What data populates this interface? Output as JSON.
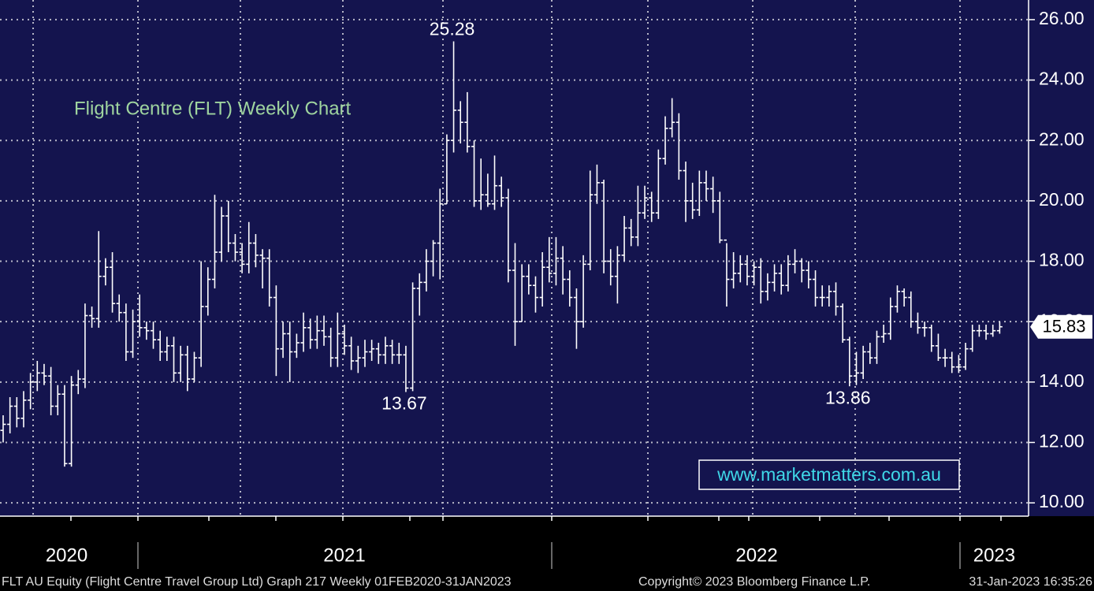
{
  "chart_data": {
    "type": "ohlc",
    "title": "Flight Centre (FLT) Weekly Chart",
    "watermark": "www.marketmatters.com.au",
    "footer_left": "FLT AU Equity (Flight Centre Travel Group Ltd) Graph 217  Weekly 01FEB2020-31JAN2023",
    "footer_mid": "Copyright© 2023 Bloomberg Finance L.P.",
    "footer_right": "31-Jan-2023 16:35:26",
    "color": "#ffffff",
    "grid": true,
    "ylim": [
      9.56,
      26.65
    ],
    "yticks": [
      {
        "value": 10,
        "label": "10.00"
      },
      {
        "value": 12,
        "label": "12.00"
      },
      {
        "value": 14,
        "label": "14.00"
      },
      {
        "value": 16,
        "label": "16.00"
      },
      {
        "value": 18,
        "label": "18.00"
      },
      {
        "value": 20,
        "label": "20.00"
      },
      {
        "value": 22,
        "label": "22.00"
      },
      {
        "value": 24,
        "label": "24.00"
      },
      {
        "value": 26,
        "label": "26.00"
      }
    ],
    "xlim": [
      -0.5,
      150.5
    ],
    "xticks": [
      {
        "value": 9.3,
        "label": "2020"
      },
      {
        "value": 50,
        "label": "2021"
      },
      {
        "value": 110.4,
        "label": "2022"
      },
      {
        "value": 145.2,
        "label": "2023"
      }
    ],
    "annotations": [
      25.28,
      13.67,
      13.86
    ],
    "last_price": 15.83,
    "open": [
      12.4,
      12.6,
      13.2,
      12.8,
      13.4,
      14.0,
      14.3,
      14.2,
      13.2,
      13.6,
      11.3,
      13.9,
      14.1,
      16.2,
      16.1,
      17.5,
      17.8,
      16.6,
      16.3,
      15.0,
      16.0,
      15.8,
      15.7,
      15.4,
      15.0,
      15.2,
      14.3,
      14.9,
      14.1,
      14.8,
      16.5,
      17.4,
      18.3,
      19.5,
      18.6,
      18.3,
      17.9,
      18.6,
      18.2,
      18.1,
      16.8,
      15.1,
      15.6,
      15.0,
      15.3,
      15.8,
      15.4,
      15.7,
      15.5,
      14.8,
      15.6,
      15.2,
      14.7,
      14.8,
      15.0,
      15.1,
      14.9,
      15.2,
      14.9,
      14.9,
      13.8,
      17.1,
      17.3,
      18.0,
      18.6,
      19.9,
      22.0,
      23.0,
      22.6,
      21.8,
      20.0,
      20.2,
      19.9,
      20.5,
      20.1,
      17.7,
      16.0,
      17.5,
      17.2,
      16.8,
      17.8,
      17.6,
      18.1,
      17.4,
      16.8,
      16.0,
      17.9,
      20.2,
      20.6,
      18.0,
      17.5,
      18.2,
      19.1,
      18.8,
      19.6,
      20.1,
      19.6,
      21.4,
      22.4,
      22.6,
      21.0,
      20.0,
      19.7,
      20.6,
      20.4,
      20.0,
      18.7,
      17.4,
      17.6,
      17.9,
      17.5,
      17.8,
      17.0,
      17.3,
      17.6,
      17.2,
      17.9,
      18.0,
      17.7,
      17.4,
      16.8,
      16.8,
      17.0,
      16.5,
      15.4,
      14.2,
      14.3,
      15.0,
      14.8,
      15.5,
      15.6,
      16.5,
      17.0,
      16.8,
      16.0,
      15.8,
      15.8,
      15.2,
      14.8,
      14.8,
      14.5,
      14.5,
      15.1,
      15.7,
      15.7,
      15.6,
      15.7
    ],
    "high": [
      12.9,
      13.5,
      13.5,
      13.7,
      14.3,
      14.7,
      14.6,
      14.5,
      13.9,
      13.9,
      14.2,
      14.4,
      16.6,
      16.5,
      19.0,
      18.1,
      18.3,
      16.9,
      16.6,
      16.4,
      16.9,
      16.0,
      16.0,
      15.7,
      15.5,
      15.5,
      15.2,
      15.2,
      15.0,
      18.0,
      17.8,
      20.2,
      19.8,
      20.0,
      18.9,
      18.6,
      19.3,
      18.9,
      18.4,
      18.4,
      17.2,
      16.0,
      16.0,
      15.6,
      16.3,
      16.1,
      16.2,
      16.2,
      15.8,
      16.3,
      15.9,
      15.5,
      15.2,
      15.4,
      15.4,
      15.3,
      15.5,
      15.4,
      15.3,
      15.2,
      17.3,
      17.6,
      18.4,
      18.7,
      20.4,
      22.2,
      25.28,
      23.3,
      23.6,
      22.0,
      21.4,
      20.9,
      21.5,
      20.8,
      20.4,
      18.6,
      17.9,
      17.9,
      17.5,
      18.3,
      18.8,
      18.8,
      18.5,
      17.7,
      17.1,
      18.2,
      21.0,
      21.2,
      20.7,
      18.4,
      18.5,
      19.5,
      19.4,
      20.5,
      20.5,
      20.3,
      21.7,
      22.8,
      23.4,
      22.9,
      21.3,
      20.6,
      21.0,
      21.0,
      20.8,
      20.3,
      18.6,
      18.3,
      18.2,
      18.2,
      18.0,
      18.1,
      17.6,
      17.9,
      17.9,
      18.2,
      18.4,
      18.1,
      18.0,
      17.7,
      17.2,
      17.2,
      17.3,
      16.6,
      15.5,
      15.0,
      15.2,
      15.3,
      15.7,
      15.9,
      16.8,
      17.2,
      17.1,
      17.0,
      16.3,
      16.0,
      15.9,
      15.6,
      15.1,
      15.0,
      14.9,
      15.3,
      15.9,
      15.9,
      15.9,
      15.9,
      16.0
    ],
    "low": [
      12.0,
      12.3,
      12.5,
      12.5,
      13.1,
      13.7,
      13.9,
      12.9,
      12.9,
      11.2,
      11.2,
      13.6,
      13.8,
      15.8,
      15.8,
      17.2,
      16.3,
      16.0,
      14.7,
      14.8,
      15.5,
      15.4,
      15.1,
      14.7,
      14.7,
      14.0,
      14.0,
      13.7,
      14.0,
      14.5,
      16.2,
      17.1,
      18.0,
      18.3,
      18.0,
      17.6,
      17.6,
      17.8,
      17.1,
      16.5,
      14.2,
      14.8,
      14.0,
      14.8,
      15.0,
      15.1,
      15.1,
      15.2,
      14.5,
      14.5,
      14.9,
      14.4,
      14.3,
      14.5,
      14.7,
      14.6,
      14.6,
      14.6,
      14.6,
      13.67,
      13.7,
      16.2,
      17.0,
      17.5,
      17.4,
      19.9,
      21.6,
      21.9,
      21.6,
      19.8,
      19.7,
      19.8,
      19.7,
      19.8,
      17.3,
      15.2,
      16.0,
      16.9,
      16.3,
      16.5,
      17.3,
      17.2,
      16.9,
      16.5,
      15.1,
      15.8,
      17.7,
      19.9,
      17.6,
      17.2,
      16.6,
      18.0,
      18.5,
      18.5,
      19.4,
      19.3,
      19.4,
      21.2,
      22.1,
      20.7,
      19.3,
      19.4,
      19.5,
      20.0,
      19.6,
      18.6,
      16.5,
      17.1,
      17.3,
      17.2,
      17.2,
      16.6,
      16.7,
      17.0,
      16.9,
      17.0,
      17.6,
      17.3,
      17.1,
      16.5,
      16.5,
      16.5,
      16.2,
      15.3,
      13.86,
      13.9,
      14.1,
      14.6,
      14.6,
      15.3,
      15.4,
      16.3,
      16.5,
      15.8,
      15.6,
      15.5,
      15.0,
      14.7,
      14.5,
      14.3,
      14.3,
      14.4,
      15.0,
      15.5,
      15.4,
      15.5,
      15.6
    ],
    "close": [
      12.6,
      13.2,
      12.8,
      13.4,
      14.0,
      14.3,
      14.2,
      13.2,
      13.6,
      11.3,
      13.9,
      14.1,
      16.2,
      16.1,
      17.5,
      17.8,
      16.6,
      16.3,
      15.0,
      16.0,
      15.8,
      15.7,
      15.4,
      15.0,
      15.2,
      14.3,
      14.9,
      14.1,
      14.8,
      16.5,
      17.4,
      18.3,
      19.5,
      18.6,
      18.3,
      17.9,
      18.6,
      18.2,
      18.1,
      16.8,
      15.1,
      15.6,
      15.0,
      15.3,
      15.8,
      15.4,
      15.7,
      15.5,
      14.8,
      15.6,
      15.2,
      14.7,
      14.8,
      15.0,
      15.1,
      14.9,
      15.2,
      14.9,
      14.9,
      13.8,
      17.1,
      17.3,
      18.0,
      18.6,
      19.9,
      22.0,
      23.0,
      22.6,
      21.8,
      20.0,
      20.2,
      19.9,
      20.5,
      20.1,
      17.7,
      16.0,
      17.5,
      17.2,
      16.8,
      17.8,
      17.6,
      18.1,
      17.4,
      16.8,
      16.0,
      17.9,
      20.2,
      20.6,
      18.0,
      17.5,
      18.2,
      19.1,
      18.8,
      19.6,
      20.1,
      19.6,
      21.4,
      22.4,
      22.6,
      21.0,
      20.0,
      19.7,
      20.6,
      20.4,
      20.0,
      18.7,
      17.4,
      17.6,
      17.9,
      17.5,
      17.8,
      17.0,
      17.3,
      17.6,
      17.2,
      17.9,
      18.0,
      17.7,
      17.4,
      16.8,
      16.8,
      17.0,
      16.5,
      15.4,
      14.2,
      14.3,
      15.0,
      14.8,
      15.5,
      15.6,
      16.5,
      17.0,
      16.8,
      16.0,
      15.8,
      15.8,
      15.2,
      14.8,
      14.8,
      14.5,
      14.5,
      15.1,
      15.7,
      15.7,
      15.6,
      15.7,
      15.83
    ]
  }
}
